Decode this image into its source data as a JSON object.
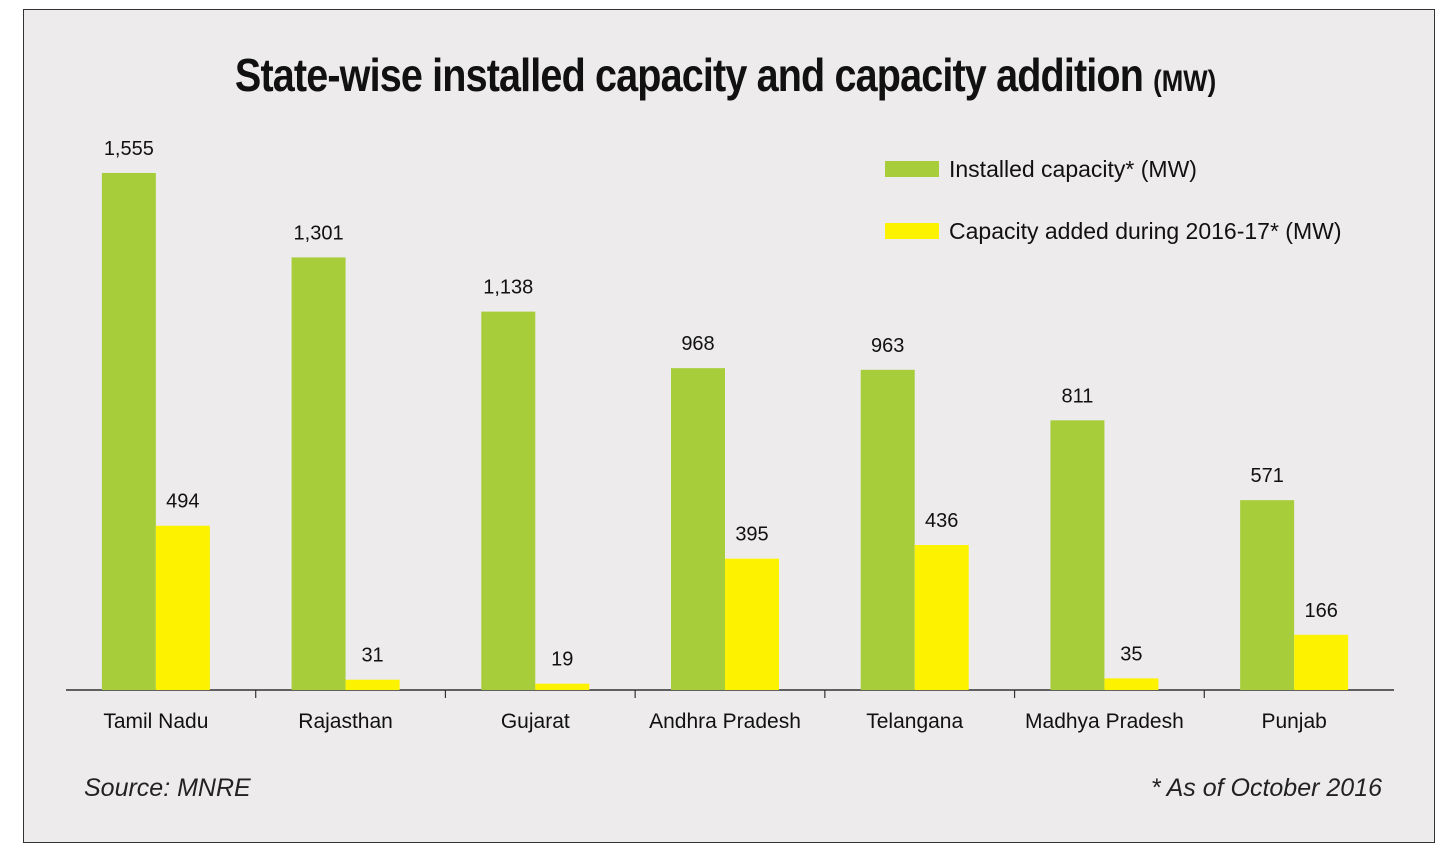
{
  "chart_data": {
    "type": "bar",
    "title": "State-wise installed capacity and capacity addition",
    "title_unit": "(MW)",
    "categories": [
      "Tamil Nadu",
      "Rajasthan",
      "Gujarat",
      "Andhra Pradesh",
      "Telangana",
      "Madhya Pradesh",
      "Punjab"
    ],
    "series": [
      {
        "name": "Installed capacity* (MW)",
        "color": "#a8cd3b",
        "values": [
          1555,
          1301,
          1138,
          968,
          963,
          811,
          571
        ],
        "labels": [
          "1,555",
          "1,301",
          "1,138",
          "968",
          "963",
          "811",
          "571"
        ]
      },
      {
        "name": "Capacity added during 2016-17* (MW)",
        "color": "#fdf200",
        "values": [
          494,
          31,
          19,
          395,
          436,
          35,
          166
        ],
        "labels": [
          "494",
          "31",
          "19",
          "395",
          "436",
          "35",
          "166"
        ]
      }
    ],
    "xlabel": "",
    "ylabel": "",
    "ylim": [
      0,
      1600
    ],
    "grid": false,
    "legend_position": "top-right"
  },
  "footer": {
    "source": "Source: MNRE",
    "note": "* As of October 2016"
  },
  "colors": {
    "background": "#edebec",
    "axis": "#333333",
    "text": "#111111"
  }
}
